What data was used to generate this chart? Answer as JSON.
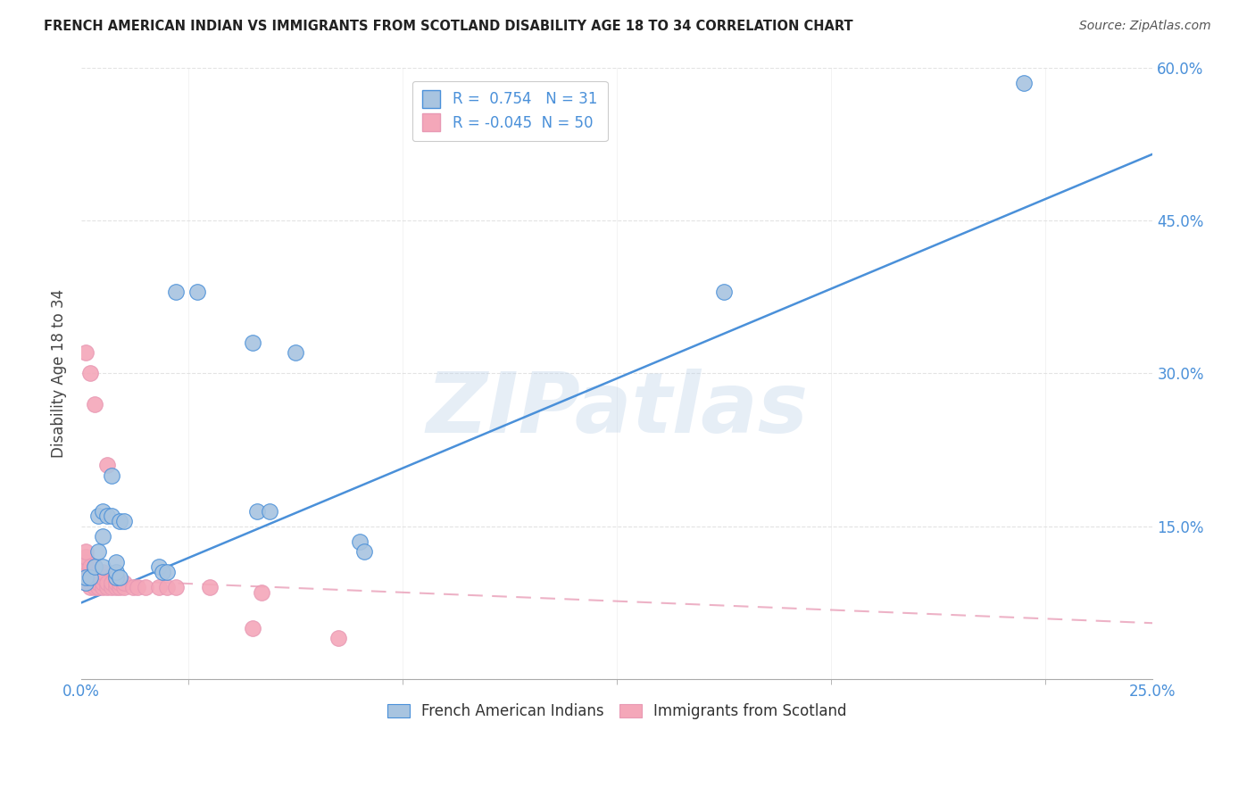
{
  "title": "FRENCH AMERICAN INDIAN VS IMMIGRANTS FROM SCOTLAND DISABILITY AGE 18 TO 34 CORRELATION CHART",
  "source": "Source: ZipAtlas.com",
  "ylabel_label": "Disability Age 18 to 34",
  "blue_R": 0.754,
  "blue_N": 31,
  "pink_R": -0.045,
  "pink_N": 50,
  "blue_color": "#a8c4e0",
  "blue_line_color": "#4a90d9",
  "pink_color": "#f4a7b9",
  "pink_line_color": "#e899b4",
  "watermark": "ZIPatlas",
  "blue_points": [
    [
      0.001,
      0.095
    ],
    [
      0.001,
      0.1
    ],
    [
      0.002,
      0.1
    ],
    [
      0.003,
      0.11
    ],
    [
      0.004,
      0.125
    ],
    [
      0.004,
      0.16
    ],
    [
      0.005,
      0.11
    ],
    [
      0.005,
      0.14
    ],
    [
      0.005,
      0.165
    ],
    [
      0.006,
      0.16
    ],
    [
      0.007,
      0.16
    ],
    [
      0.007,
      0.2
    ],
    [
      0.008,
      0.1
    ],
    [
      0.008,
      0.105
    ],
    [
      0.008,
      0.115
    ],
    [
      0.009,
      0.1
    ],
    [
      0.009,
      0.155
    ],
    [
      0.01,
      0.155
    ],
    [
      0.018,
      0.11
    ],
    [
      0.019,
      0.105
    ],
    [
      0.02,
      0.105
    ],
    [
      0.022,
      0.38
    ],
    [
      0.027,
      0.38
    ],
    [
      0.04,
      0.33
    ],
    [
      0.041,
      0.165
    ],
    [
      0.044,
      0.165
    ],
    [
      0.05,
      0.32
    ],
    [
      0.065,
      0.135
    ],
    [
      0.066,
      0.125
    ],
    [
      0.15,
      0.38
    ],
    [
      0.22,
      0.585
    ]
  ],
  "pink_points": [
    [
      0.001,
      0.095
    ],
    [
      0.001,
      0.1
    ],
    [
      0.001,
      0.105
    ],
    [
      0.001,
      0.11
    ],
    [
      0.001,
      0.115
    ],
    [
      0.001,
      0.12
    ],
    [
      0.001,
      0.125
    ],
    [
      0.001,
      0.32
    ],
    [
      0.002,
      0.09
    ],
    [
      0.002,
      0.095
    ],
    [
      0.002,
      0.1
    ],
    [
      0.002,
      0.105
    ],
    [
      0.002,
      0.11
    ],
    [
      0.002,
      0.3
    ],
    [
      0.003,
      0.09
    ],
    [
      0.003,
      0.095
    ],
    [
      0.003,
      0.1
    ],
    [
      0.003,
      0.105
    ],
    [
      0.003,
      0.11
    ],
    [
      0.003,
      0.27
    ],
    [
      0.004,
      0.09
    ],
    [
      0.004,
      0.095
    ],
    [
      0.004,
      0.1
    ],
    [
      0.004,
      0.105
    ],
    [
      0.005,
      0.09
    ],
    [
      0.005,
      0.095
    ],
    [
      0.005,
      0.1
    ],
    [
      0.005,
      0.105
    ],
    [
      0.006,
      0.09
    ],
    [
      0.006,
      0.095
    ],
    [
      0.006,
      0.21
    ],
    [
      0.007,
      0.09
    ],
    [
      0.007,
      0.095
    ],
    [
      0.008,
      0.09
    ],
    [
      0.008,
      0.095
    ],
    [
      0.008,
      0.1
    ],
    [
      0.009,
      0.09
    ],
    [
      0.009,
      0.095
    ],
    [
      0.01,
      0.09
    ],
    [
      0.01,
      0.095
    ],
    [
      0.012,
      0.09
    ],
    [
      0.013,
      0.09
    ],
    [
      0.015,
      0.09
    ],
    [
      0.018,
      0.09
    ],
    [
      0.02,
      0.09
    ],
    [
      0.022,
      0.09
    ],
    [
      0.03,
      0.09
    ],
    [
      0.04,
      0.05
    ],
    [
      0.042,
      0.085
    ],
    [
      0.06,
      0.04
    ]
  ],
  "blue_line_x": [
    0.0,
    0.25
  ],
  "blue_line_y": [
    0.075,
    0.515
  ],
  "pink_line_x": [
    0.0,
    0.25
  ],
  "pink_line_y": [
    0.098,
    0.055
  ],
  "grid_color": "#dddddd",
  "tick_color": "#4a90d9",
  "background_color": "#ffffff",
  "legend_label1": "French American Indians",
  "legend_label2": "Immigrants from Scotland",
  "xmin": 0.0,
  "xmax": 0.25,
  "ymin": 0.0,
  "ymax": 0.6,
  "ytick_vals": [
    0.0,
    0.15,
    0.3,
    0.45,
    0.6
  ],
  "ytick_labels": [
    "",
    "15.0%",
    "30.0%",
    "45.0%",
    "60.0%"
  ],
  "xtick_vals": [
    0.0,
    0.05,
    0.1,
    0.15,
    0.2,
    0.25
  ],
  "xtick_labels": [
    "0.0%",
    "",
    "",
    "",
    "",
    "25.0%"
  ]
}
